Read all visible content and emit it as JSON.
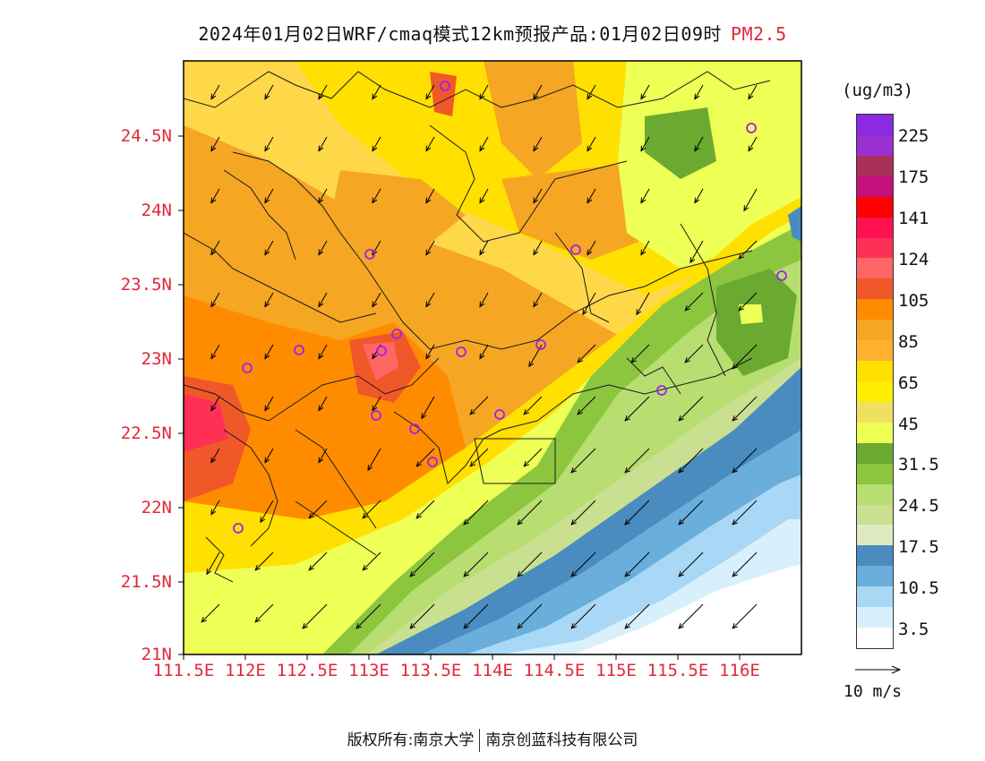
{
  "title": {
    "main": "2024年01月02日WRF/cmaq模式12km预报产品:01月02日09时",
    "pollutant": "PM2.5"
  },
  "map": {
    "lat_labels": [
      "24.5N",
      "24N",
      "23.5N",
      "23N",
      "22.5N",
      "22N",
      "21.5N",
      "21N"
    ],
    "lon_labels": [
      "111.5E",
      "112E",
      "112.5E",
      "113E",
      "113.5E",
      "114E",
      "114.5E",
      "115E",
      "115.5E",
      "116E"
    ],
    "station_markers": 13,
    "colors": {
      "frame": "#000000",
      "boundary": "#1a1a1a",
      "station": "#a020f0"
    }
  },
  "legend": {
    "units": "(ug/m3)",
    "ticks": [
      "225",
      "175",
      "141",
      "124",
      "105",
      "85",
      "65",
      "45",
      "31.5",
      "24.5",
      "17.5",
      "10.5",
      "3.5"
    ],
    "colors_top_to_bottom": [
      "#8a2be2",
      "#9b30d0",
      "#a8305a",
      "#c4107a",
      "#ff0000",
      "#ff1050",
      "#ff3055",
      "#ff6666",
      "#f0582a",
      "#ff8c00",
      "#f5a623",
      "#ffb030",
      "#ffe000",
      "#ffee00",
      "#f0e060",
      "#eeff55",
      "#6aaa30",
      "#8cc63f",
      "#b8dd70",
      "#c8e090",
      "#e0eac0",
      "#4a8cc0",
      "#6aaedb",
      "#a8d8f5",
      "#d8f0fb",
      "#ffffff"
    ],
    "wind_ref": "10 m/s"
  },
  "footer": {
    "left": "版权所有:南京大学",
    "right": "南京创蓝科技有限公司"
  }
}
